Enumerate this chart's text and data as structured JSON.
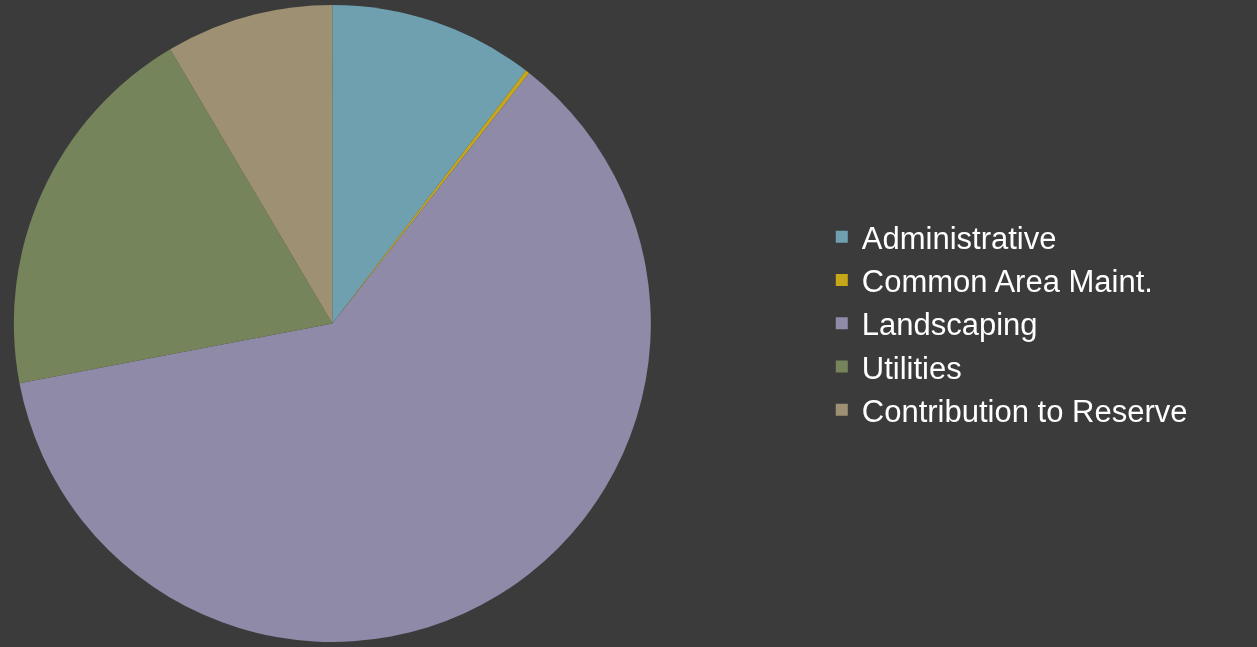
{
  "chart_data": {
    "type": "pie",
    "categories": [
      "Administrative",
      "Common Area Maint.",
      "Landscaping",
      "Utilities",
      "Contribution to Reserve"
    ],
    "values": [
      10.4,
      0.2,
      61.4,
      19.5,
      8.5
    ],
    "colors": [
      "#6fa0b0",
      "#c8a818",
      "#8e8aa8",
      "#76845c",
      "#9e9072"
    ],
    "legend": "right"
  }
}
